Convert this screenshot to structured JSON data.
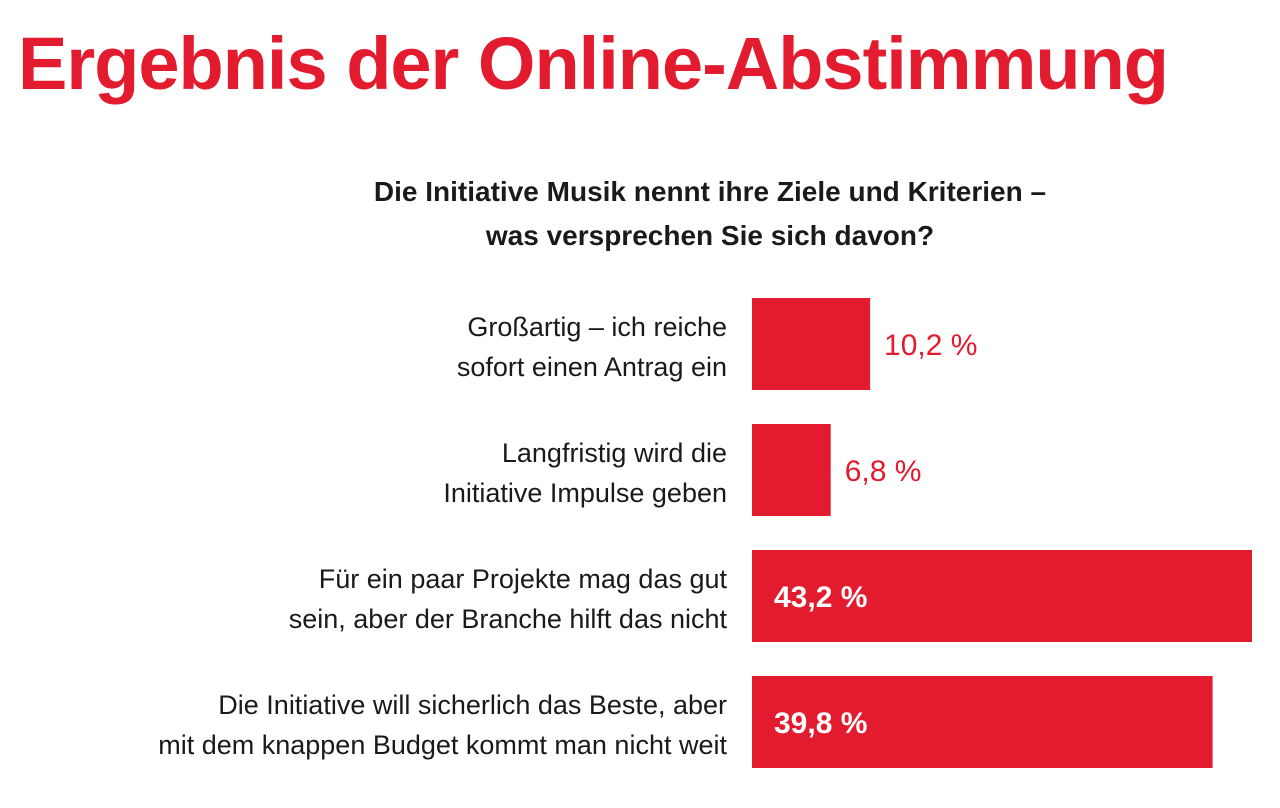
{
  "chart_data": {
    "type": "bar",
    "orientation": "horizontal",
    "title": "Ergebnis der Online-Abstimmung",
    "subtitle": [
      "Die Initiative Musik nennt ihre Ziele und Kriterien –",
      "was versprechen Sie sich davon?"
    ],
    "categories": [
      [
        "Großartig – ich reiche",
        "sofort einen Antrag ein"
      ],
      [
        "Langfristig wird die",
        "Initiative Impulse geben"
      ],
      [
        "Für ein paar Projekte mag das gut",
        "sein, aber der Branche hilft das nicht"
      ],
      [
        "Die Initiative will sicherlich das Beste, aber",
        "mit dem knappen Budget kommt man nicht weit"
      ]
    ],
    "values": [
      10.2,
      6.8,
      43.2,
      39.8
    ],
    "data_labels": [
      "10,2 %",
      "6,8 %",
      "43,2 %",
      "39,8 %"
    ],
    "unit": "%",
    "xlim": [
      0,
      43.2
    ],
    "grid": false,
    "legend": "none"
  },
  "colors": {
    "accent": "#e31b2e",
    "text": "#1a1a1a",
    "label_inside": "#ffffff",
    "background": "#ffffff"
  }
}
